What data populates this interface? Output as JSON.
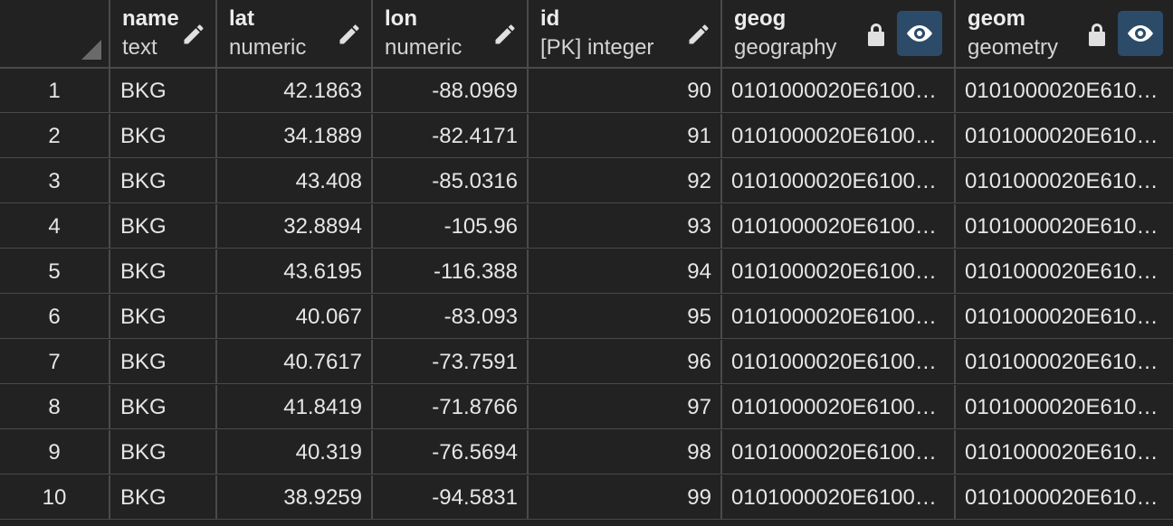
{
  "columns": [
    {
      "name": "name",
      "type": "text"
    },
    {
      "name": "lat",
      "type": "numeric"
    },
    {
      "name": "lon",
      "type": "numeric"
    },
    {
      "name": "id",
      "type": "[PK] integer"
    },
    {
      "name": "geog",
      "type": "geography"
    },
    {
      "name": "geom",
      "type": "geometry"
    }
  ],
  "rows": [
    {
      "n": "1",
      "name": "BKG",
      "lat": "42.1863",
      "lon": "-88.0969",
      "id": "90",
      "geog": "0101000020E61000…",
      "geom": "0101000020E6100…"
    },
    {
      "n": "2",
      "name": "BKG",
      "lat": "34.1889",
      "lon": "-82.4171",
      "id": "91",
      "geog": "0101000020E61000…",
      "geom": "0101000020E6100…"
    },
    {
      "n": "3",
      "name": "BKG",
      "lat": "43.408",
      "lon": "-85.0316",
      "id": "92",
      "geog": "0101000020E61000…",
      "geom": "0101000020E6100…"
    },
    {
      "n": "4",
      "name": "BKG",
      "lat": "32.8894",
      "lon": "-105.96",
      "id": "93",
      "geog": "0101000020E61000…",
      "geom": "0101000020E6100…"
    },
    {
      "n": "5",
      "name": "BKG",
      "lat": "43.6195",
      "lon": "-116.388",
      "id": "94",
      "geog": "0101000020E61000…",
      "geom": "0101000020E6100…"
    },
    {
      "n": "6",
      "name": "BKG",
      "lat": "40.067",
      "lon": "-83.093",
      "id": "95",
      "geog": "0101000020E61000…",
      "geom": "0101000020E6100…"
    },
    {
      "n": "7",
      "name": "BKG",
      "lat": "40.7617",
      "lon": "-73.7591",
      "id": "96",
      "geog": "0101000020E61000…",
      "geom": "0101000020E6100…"
    },
    {
      "n": "8",
      "name": "BKG",
      "lat": "41.8419",
      "lon": "-71.8766",
      "id": "97",
      "geog": "0101000020E61000…",
      "geom": "0101000020E6100…"
    },
    {
      "n": "9",
      "name": "BKG",
      "lat": "40.319",
      "lon": "-76.5694",
      "id": "98",
      "geog": "0101000020E61000…",
      "geom": "0101000020E6100…"
    },
    {
      "n": "10",
      "name": "BKG",
      "lat": "38.9259",
      "lon": "-94.5831",
      "id": "99",
      "geog": "0101000020E61000…",
      "geom": "0101000020E6100…"
    }
  ],
  "colors": {
    "background": "#222222",
    "grid_line": "#4a4a4a",
    "eye_button": "#2c4b68"
  }
}
